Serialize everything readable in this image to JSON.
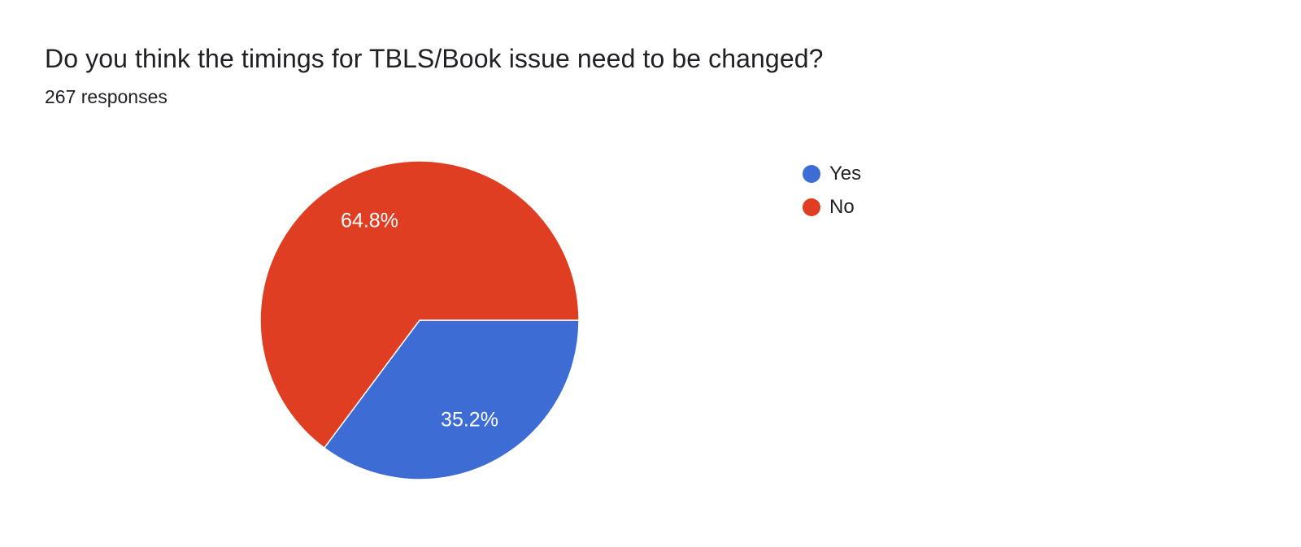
{
  "header": {
    "title": "Do you think the timings for TBLS/Book issue need to be changed?",
    "responses_text": "267 responses"
  },
  "chart_data": {
    "type": "pie",
    "title": "Do you think the timings for TBLS/Book issue need to be changed?",
    "subtitle": "267 responses",
    "total_responses": 267,
    "slices": [
      {
        "label": "Yes",
        "percent": 35.2,
        "display": "35.2%",
        "color": "#3c6cd4"
      },
      {
        "label": "No",
        "percent": 64.8,
        "display": "64.8%",
        "color": "#df3e22"
      }
    ],
    "start_angle_deg": 0,
    "direction": "clockwise",
    "legend_position": "right",
    "slice_label_color": "#ffffff",
    "slice_border_color": "#ffffff"
  }
}
